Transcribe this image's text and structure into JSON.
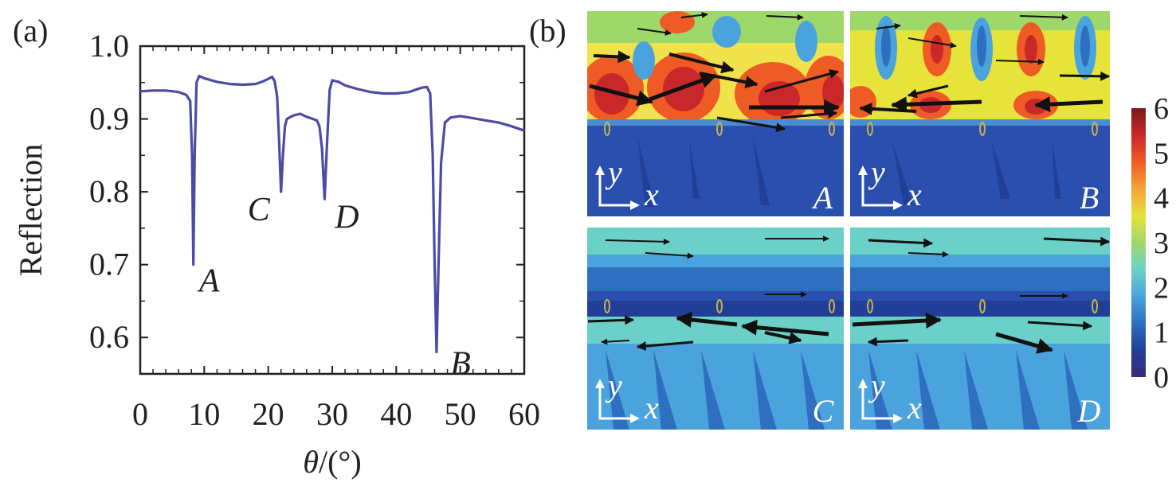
{
  "chart_data": [
    {
      "panel_label": "(a)",
      "type": "line",
      "xlabel_symbol": "θ",
      "xlabel_unit": "/(°)",
      "ylabel": "Reflection",
      "xlim": [
        0,
        60
      ],
      "ylim": [
        0.55,
        1.0
      ],
      "x_ticks": [
        "0",
        "10",
        "20",
        "30",
        "40",
        "50",
        "60"
      ],
      "y_ticks": [
        "0.6",
        "0.7",
        "0.8",
        "0.9",
        "1.0"
      ],
      "series_color": "#4b4ba6",
      "series": [
        {
          "x": [
            0,
            2,
            4,
            6,
            7.2,
            7.8,
            8.1,
            8.3,
            8.5,
            8.8,
            9.2,
            10,
            12,
            14,
            16,
            18,
            19,
            20,
            20.6,
            21.0,
            21.4,
            21.7,
            22.0,
            22.3,
            22.6,
            22.9,
            23.3,
            24,
            25,
            26,
            27,
            27.6,
            28.0,
            28.4,
            28.8,
            29.2,
            29.6,
            30,
            31,
            32,
            34,
            36,
            38,
            40,
            42,
            43,
            44,
            44.8,
            45.3,
            45.7,
            46.0,
            46.3,
            46.6,
            47,
            47.6,
            48.5,
            50,
            52,
            54,
            56,
            58,
            60
          ],
          "y": [
            0.938,
            0.939,
            0.939,
            0.937,
            0.933,
            0.925,
            0.85,
            0.7,
            0.85,
            0.95,
            0.959,
            0.956,
            0.951,
            0.948,
            0.947,
            0.948,
            0.951,
            0.955,
            0.958,
            0.952,
            0.93,
            0.87,
            0.8,
            0.85,
            0.89,
            0.9,
            0.902,
            0.905,
            0.907,
            0.903,
            0.9,
            0.898,
            0.89,
            0.86,
            0.79,
            0.87,
            0.94,
            0.953,
            0.951,
            0.946,
            0.941,
            0.937,
            0.935,
            0.935,
            0.937,
            0.94,
            0.943,
            0.944,
            0.935,
            0.85,
            0.7,
            0.58,
            0.7,
            0.84,
            0.895,
            0.902,
            0.904,
            0.901,
            0.898,
            0.895,
            0.89,
            0.884
          ]
        }
      ],
      "annotations": [
        {
          "text": "A",
          "x": 8.3,
          "y": 0.7
        },
        {
          "text": "B",
          "x": 46.3,
          "y": 0.58
        },
        {
          "text": "C",
          "x": 22.0,
          "y": 0.8
        },
        {
          "text": "D",
          "x": 28.8,
          "y": 0.79
        }
      ]
    },
    {
      "panel_label": "(b)",
      "type": "heatmap",
      "subplots": [
        "A",
        "B",
        "C",
        "D"
      ],
      "axis_letters": [
        "y",
        "x"
      ],
      "colorbar_ticks": [
        "6",
        "5",
        "4",
        "3",
        "2",
        "1",
        "0"
      ],
      "colorbar_range": [
        0,
        6
      ],
      "colorbar_colors": [
        "#7a1a1a",
        "#c8282a",
        "#ef5b25",
        "#f3a43a",
        "#e6e33a",
        "#9fd86a",
        "#6bd1c8",
        "#4aa3dd",
        "#2f6fc0",
        "#213f98",
        "#3a2a78"
      ]
    }
  ]
}
